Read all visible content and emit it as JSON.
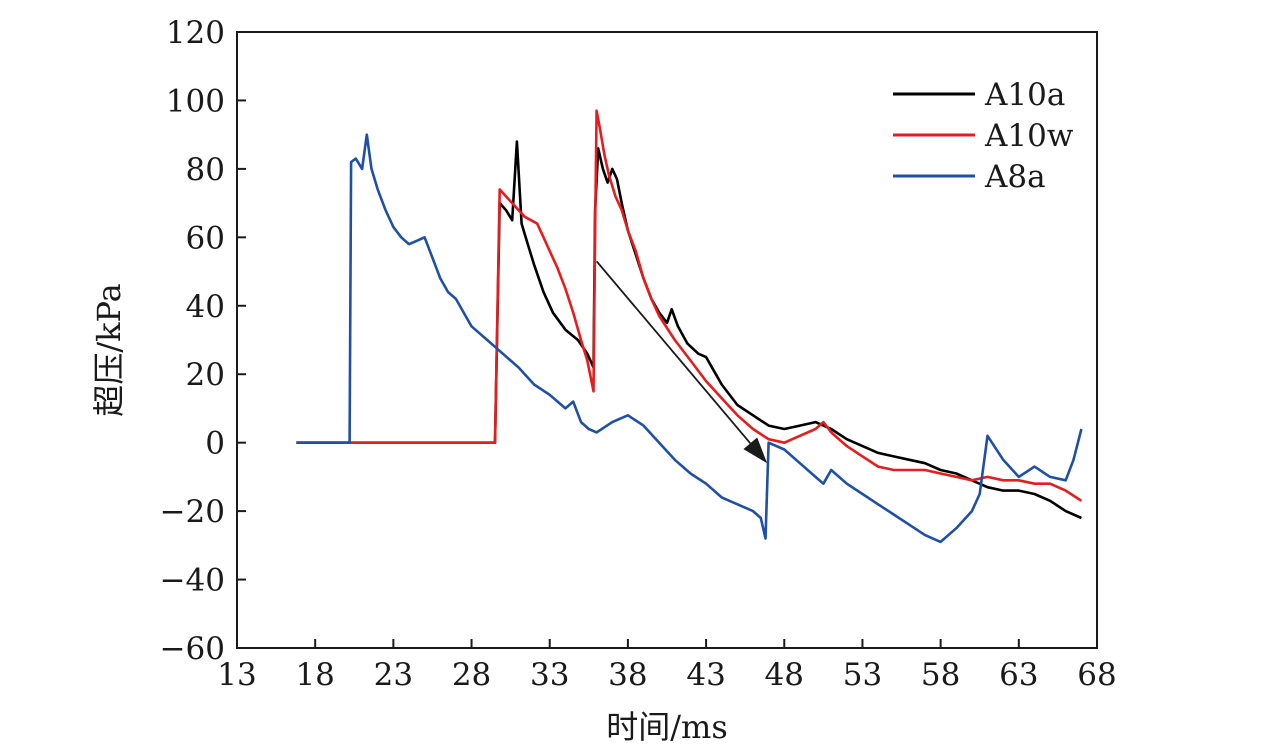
{
  "chart_data": {
    "type": "line",
    "title": "",
    "xlabel": "时间/ms",
    "ylabel": "超压/kPa",
    "xlim": [
      13,
      68
    ],
    "ylim": [
      -60,
      120
    ],
    "xticks": [
      13,
      18,
      23,
      28,
      33,
      38,
      43,
      48,
      53,
      58,
      63,
      68
    ],
    "yticks": [
      -60,
      -40,
      -20,
      0,
      20,
      40,
      60,
      80,
      100,
      120
    ],
    "xtick_labels": [
      "13",
      "18",
      "23",
      "28",
      "33",
      "38",
      "43",
      "48",
      "53",
      "58",
      "63",
      "68"
    ],
    "ytick_labels": [
      "−60",
      "−40",
      "−20",
      "0",
      "20",
      "40",
      "60",
      "80",
      "100",
      "120"
    ],
    "grid": false,
    "legend_position": "top-right",
    "series": [
      {
        "name": "A10a",
        "color": "#000000",
        "x": [
          16.8,
          20,
          25,
          29.3,
          29.5,
          29.8,
          30.2,
          30.6,
          30.9,
          31.2,
          31.6,
          32,
          32.6,
          33.2,
          34,
          34.8,
          35.4,
          35.8,
          35.9,
          36.1,
          36.4,
          36.7,
          37,
          37.3,
          37.6,
          38,
          38.5,
          39,
          39.5,
          40,
          40.5,
          40.8,
          41.2,
          41.8,
          42.5,
          43,
          43.5,
          44,
          45,
          46,
          47,
          48,
          49,
          50,
          51,
          52,
          53,
          54,
          55,
          56,
          57,
          58,
          59,
          60,
          61,
          62,
          63,
          64,
          65,
          66,
          67
        ],
        "y": [
          0,
          0,
          0,
          0,
          0,
          70,
          68,
          65,
          88,
          64,
          58,
          52,
          44,
          38,
          33,
          30,
          26,
          22,
          68,
          86,
          80,
          76,
          80,
          77,
          70,
          62,
          55,
          48,
          42,
          38,
          35,
          39,
          34,
          29,
          26,
          25,
          21,
          17,
          11,
          8,
          5,
          4,
          5,
          6,
          4,
          1,
          -1,
          -3,
          -4,
          -5,
          -6,
          -8,
          -9,
          -11,
          -13,
          -14,
          -14,
          -15,
          -17,
          -20,
          -22
        ]
      },
      {
        "name": "A10w",
        "color": "#e41e1e",
        "x": [
          16.8,
          20,
          25,
          29.3,
          29.5,
          29.8,
          30.2,
          30.6,
          31,
          31.4,
          31.8,
          32.2,
          32.6,
          33,
          33.5,
          34,
          34.5,
          35,
          35.4,
          35.8,
          35.9,
          36,
          36.2,
          36.5,
          36.8,
          37.2,
          37.6,
          38,
          38.5,
          39,
          39.5,
          40,
          41,
          42,
          43,
          44,
          45,
          46,
          47,
          48,
          49,
          50,
          50.5,
          51,
          52,
          53,
          54,
          55,
          56,
          57,
          58,
          59,
          60,
          61,
          62,
          63,
          64,
          65,
          66,
          67
        ],
        "y": [
          0,
          0,
          0,
          0,
          0,
          74,
          72,
          70,
          68,
          66,
          65,
          64,
          60,
          56,
          51,
          45,
          38,
          30,
          24,
          15,
          62,
          97,
          92,
          84,
          78,
          72,
          68,
          62,
          56,
          48,
          42,
          37,
          30,
          24,
          18,
          13,
          8,
          4,
          1,
          0,
          2,
          4,
          6,
          3,
          -1,
          -4,
          -7,
          -8,
          -8,
          -8,
          -9,
          -10,
          -11,
          -10,
          -11,
          -11,
          -12,
          -12,
          -14,
          -17
        ]
      },
      {
        "name": "A8a",
        "color": "#1f4fa6",
        "x": [
          16.8,
          19,
          20.2,
          20.3,
          20.6,
          21,
          21.3,
          21.6,
          22,
          22.5,
          23,
          23.5,
          24,
          24.5,
          25,
          25.5,
          26,
          26.5,
          27,
          27.5,
          28,
          28.5,
          29,
          29.5,
          30,
          31,
          32,
          33,
          34,
          34.5,
          35,
          35.5,
          36,
          37,
          38,
          39,
          40,
          41,
          42,
          43,
          44,
          45,
          46,
          46.5,
          46.8,
          47,
          48,
          49,
          50,
          50.5,
          51,
          52,
          53,
          54,
          55,
          56,
          57,
          58,
          59,
          60,
          60.5,
          61,
          62,
          63,
          64,
          65,
          66,
          66.5,
          67
        ],
        "y": [
          0,
          0,
          0,
          82,
          83,
          80,
          90,
          80,
          74,
          68,
          63,
          60,
          58,
          59,
          60,
          54,
          48,
          44,
          42,
          38,
          34,
          32,
          30,
          28,
          26,
          22,
          17,
          14,
          10,
          12,
          6,
          4,
          3,
          6,
          8,
          5,
          0,
          -5,
          -9,
          -12,
          -16,
          -18,
          -20,
          -22,
          -28,
          0,
          -2,
          -6,
          -10,
          -12,
          -8,
          -12,
          -15,
          -18,
          -21,
          -24,
          -27,
          -29,
          -25,
          -20,
          -15,
          2,
          -5,
          -10,
          -7,
          -10,
          -11,
          -5,
          4
        ]
      }
    ],
    "annotations": [
      {
        "type": "arrow",
        "from": [
          36,
          53
        ],
        "to": [
          46.9,
          -6
        ]
      }
    ]
  }
}
